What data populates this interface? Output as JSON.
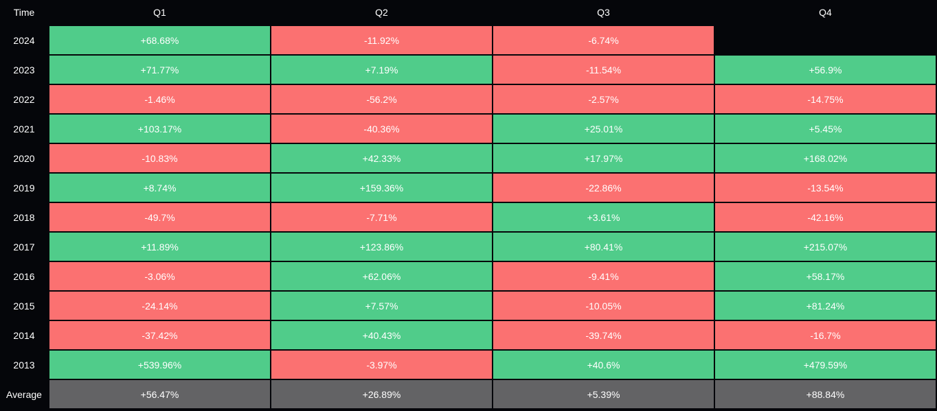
{
  "table": {
    "header": [
      "Time",
      "Q1",
      "Q2",
      "Q3",
      "Q4"
    ],
    "rows": [
      {
        "label": "2024",
        "cells": [
          "+68.68%",
          "-11.92%",
          "-6.74%",
          null
        ]
      },
      {
        "label": "2023",
        "cells": [
          "+71.77%",
          "+7.19%",
          "-11.54%",
          "+56.9%"
        ]
      },
      {
        "label": "2022",
        "cells": [
          "-1.46%",
          "-56.2%",
          "-2.57%",
          "-14.75%"
        ]
      },
      {
        "label": "2021",
        "cells": [
          "+103.17%",
          "-40.36%",
          "+25.01%",
          "+5.45%"
        ]
      },
      {
        "label": "2020",
        "cells": [
          "-10.83%",
          "+42.33%",
          "+17.97%",
          "+168.02%"
        ]
      },
      {
        "label": "2019",
        "cells": [
          "+8.74%",
          "+159.36%",
          "-22.86%",
          "-13.54%"
        ]
      },
      {
        "label": "2018",
        "cells": [
          "-49.7%",
          "-7.71%",
          "+3.61%",
          "-42.16%"
        ]
      },
      {
        "label": "2017",
        "cells": [
          "+11.89%",
          "+123.86%",
          "+80.41%",
          "+215.07%"
        ]
      },
      {
        "label": "2016",
        "cells": [
          "-3.06%",
          "+62.06%",
          "-9.41%",
          "+58.17%"
        ]
      },
      {
        "label": "2015",
        "cells": [
          "-24.14%",
          "+7.57%",
          "-10.05%",
          "+81.24%"
        ]
      },
      {
        "label": "2014",
        "cells": [
          "-37.42%",
          "+40.43%",
          "-39.74%",
          "-16.7%"
        ]
      },
      {
        "label": "2013",
        "cells": [
          "+539.96%",
          "-3.97%",
          "+40.6%",
          "+479.59%"
        ]
      }
    ],
    "average": {
      "label": "Average",
      "cells": [
        "+56.47%",
        "+26.89%",
        "+5.39%",
        "+88.84%"
      ]
    },
    "colors": {
      "up": "#50cc8a",
      "down": "#fb7171",
      "average": "#636365",
      "empty": "#05060a"
    }
  }
}
